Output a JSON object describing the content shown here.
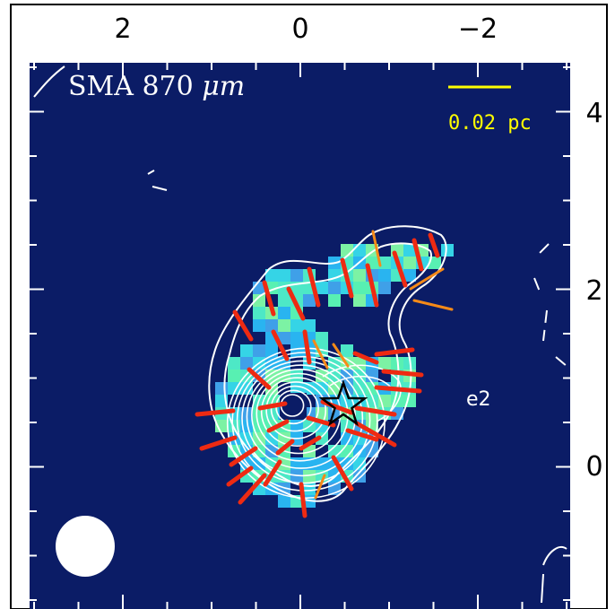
{
  "panel": {
    "label_prefix": "SMA 870 ",
    "label_unit": "μm",
    "scale_bar_label": "0.02 pc",
    "source_label": "e2"
  },
  "axes": {
    "x_tick_labels": [
      "2",
      "0",
      "−2"
    ],
    "y_tick_labels": [
      "4",
      "2",
      "0"
    ]
  },
  "colors": {
    "background": "#0b1c66",
    "contour": "#ffffff",
    "vector_red": "#ee2a12",
    "vector_orange": "#f58a18",
    "scale_bar": "#ffff00",
    "beam": "#ffffff",
    "star_marker": "#000000"
  },
  "marker": {
    "type": "star-icon"
  }
}
